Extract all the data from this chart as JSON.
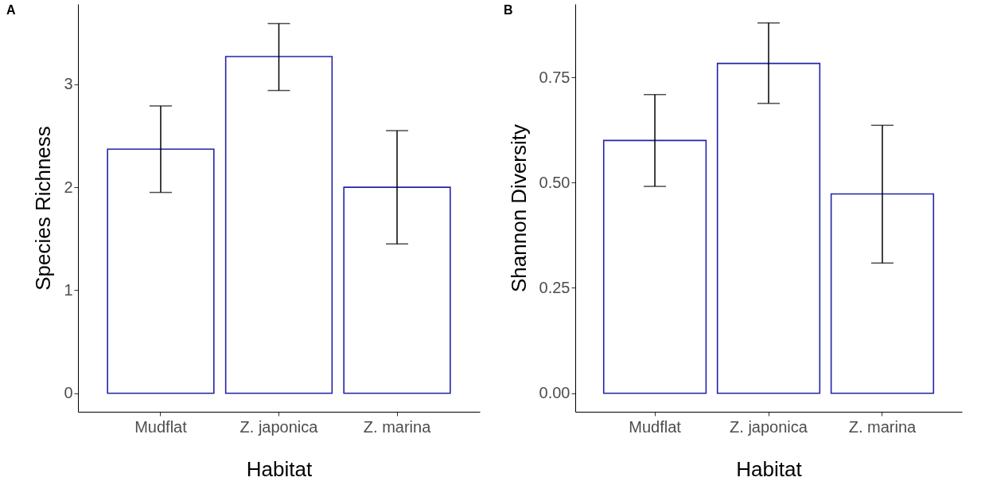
{
  "chart_data": [
    {
      "type": "bar",
      "title": "A",
      "xlabel": "Habitat",
      "ylabel": "Species Richness",
      "categories": [
        "Mudflat",
        "Z. japonica",
        "Z. marina"
      ],
      "values": [
        2.37,
        3.27,
        2.0
      ],
      "color": "#2323a8",
      "errors": [
        [
          1.95,
          2.79
        ],
        [
          2.94,
          3.59
        ],
        [
          1.45,
          2.55
        ]
      ],
      "ylim": [
        -0.18,
        3.78
      ],
      "yticks": [
        0,
        1,
        2,
        3
      ]
    },
    {
      "type": "bar",
      "title": "B",
      "xlabel": "Habitat",
      "ylabel": "Shannon Diversity",
      "categories": [
        "Mudflat",
        "Z. japonica",
        "Z. marina"
      ],
      "values": [
        0.6,
        0.783,
        0.473
      ],
      "color": "#2323a8",
      "errors": [
        [
          0.491,
          0.709
        ],
        [
          0.688,
          0.879
        ],
        [
          0.309,
          0.636
        ]
      ],
      "ylim": [
        -0.044,
        0.924
      ],
      "yticks": [
        {
          "value": 0,
          "label": "0.00"
        },
        {
          "value": 0.25,
          "label": "0.25"
        },
        {
          "value": 0.5,
          "label": "0.50"
        },
        {
          "value": 0.75,
          "label": "0.75"
        }
      ]
    }
  ]
}
